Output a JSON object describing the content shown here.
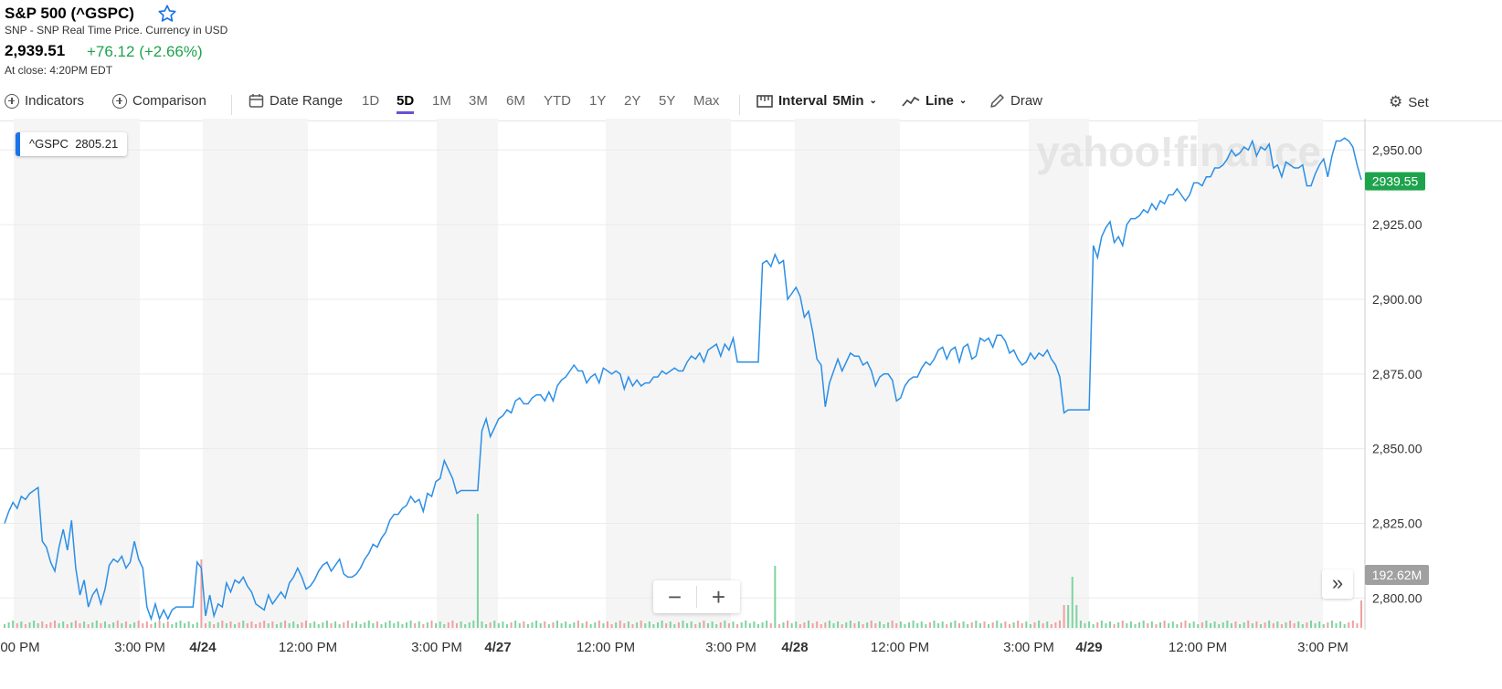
{
  "header": {
    "title": "S&P 500 (^GSPC)",
    "subtitle": "SNP - SNP Real Time Price. Currency in USD",
    "price": "2,939.51",
    "change": "+76.12 (+2.66%)",
    "close_time": "At close: 4:20PM EDT"
  },
  "toolbar": {
    "indicators": "Indicators",
    "comparison": "Comparison",
    "date_range": "Date Range",
    "ranges": [
      "1D",
      "5D",
      "1M",
      "3M",
      "6M",
      "YTD",
      "1Y",
      "2Y",
      "5Y",
      "Max"
    ],
    "active_range": "5D",
    "interval_label": "Interval",
    "interval_value": "5Min",
    "chart_type": "Line",
    "draw": "Draw",
    "settings": "Set"
  },
  "chip": {
    "symbol": "^GSPC",
    "value": "2805.21"
  },
  "watermark": "yahoo!finance",
  "colors": {
    "line": "#2b8fe6",
    "up": "#1ea34d",
    "down": "#e05050",
    "accent": "#6b4fd8",
    "vol_up": "#7fd39e",
    "vol_down": "#f0a0a0"
  },
  "chart_data": {
    "type": "line",
    "series": [
      {
        "values": [
          2825,
          2829,
          2832,
          2830,
          2834,
          2833,
          2835,
          2836,
          2837,
          2819,
          2817,
          2812,
          2809,
          2817,
          2823,
          2816,
          2826,
          2810,
          2801,
          2806,
          2797,
          2801,
          2803,
          2798,
          2803,
          2811,
          2813,
          2812,
          2814,
          2810,
          2812,
          2819,
          2813,
          2810,
          2797,
          2793,
          2798,
          2793,
          2796,
          2793,
          2796,
          2797,
          2797,
          2797,
          2797,
          2797,
          2812,
          2810,
          2794,
          2801,
          2794,
          2798,
          2797,
          2805,
          2802,
          2806,
          2805,
          2807,
          2804,
          2802,
          2798,
          2797,
          2796,
          2801,
          2798,
          2800,
          2802,
          2800,
          2805,
          2807,
          2810,
          2807,
          2803,
          2804,
          2806,
          2809,
          2811,
          2812,
          2809,
          2811,
          2813,
          2808,
          2807,
          2807,
          2808,
          2810,
          2813,
          2815,
          2818,
          2817,
          2820,
          2822,
          2826,
          2828,
          2828,
          2830,
          2831,
          2834,
          2832,
          2833,
          2829,
          2835,
          2834,
          2839,
          2840,
          2846,
          2843,
          2840,
          2835,
          2836,
          2836,
          2836,
          2836,
          2836,
          2856,
          2860,
          2854,
          2857,
          2860,
          2861,
          2863,
          2862,
          2866,
          2867,
          2865,
          2865,
          2867,
          2868,
          2868,
          2866,
          2869,
          2866,
          2871,
          2873,
          2874,
          2876,
          2878,
          2876,
          2876,
          2872,
          2874,
          2875,
          2872,
          2877,
          2876,
          2875,
          2876,
          2875,
          2870,
          2874,
          2871,
          2873,
          2871,
          2872,
          2872,
          2874,
          2874,
          2876,
          2875,
          2876,
          2877,
          2876,
          2876,
          2879,
          2881,
          2880,
          2882,
          2879,
          2883,
          2884,
          2885,
          2881,
          2885,
          2883,
          2887,
          2879,
          2879,
          2879,
          2879,
          2879,
          2879,
          2912,
          2913,
          2911,
          2915,
          2912,
          2913,
          2900,
          2902,
          2904,
          2901,
          2894,
          2896,
          2889,
          2880,
          2878,
          2864,
          2872,
          2876,
          2880,
          2876,
          2879,
          2882,
          2881,
          2881,
          2878,
          2879,
          2876,
          2871,
          2874,
          2875,
          2875,
          2873,
          2866,
          2867,
          2871,
          2873,
          2874,
          2874,
          2877,
          2879,
          2878,
          2880,
          2883,
          2884,
          2880,
          2883,
          2884,
          2879,
          2884,
          2885,
          2880,
          2881,
          2887,
          2886,
          2887,
          2884,
          2888,
          2888,
          2886,
          2882,
          2883,
          2880,
          2878,
          2879,
          2882,
          2880,
          2882,
          2881,
          2883,
          2880,
          2878,
          2874,
          2862,
          2863,
          2863,
          2863,
          2863,
          2863,
          2863,
          2918,
          2914,
          2921,
          2924,
          2926,
          2919,
          2921,
          2918,
          2925,
          2927,
          2927,
          2928,
          2930,
          2929,
          2932,
          2930,
          2933,
          2932,
          2935,
          2935,
          2937,
          2935,
          2933,
          2935,
          2939,
          2939,
          2938,
          2941,
          2941,
          2944,
          2944,
          2945,
          2947,
          2950,
          2948,
          2949,
          2951,
          2950,
          2953,
          2948,
          2951,
          2950,
          2952,
          2944,
          2945,
          2941,
          2946,
          2945,
          2944,
          2944,
          2945,
          2938,
          2938,
          2942,
          2945,
          2947,
          2941,
          2948,
          2953,
          2953,
          2954,
          2953,
          2951,
          2945,
          2940
        ]
      }
    ],
    "ylim": [
      2790,
      2955
    ],
    "y_ticks": [
      2800,
      2825,
      2850,
      2875,
      2900,
      2925,
      2950
    ],
    "y_tick_labels": [
      "2,800.00",
      "2,825.00",
      "2,850.00",
      "2,875.00",
      "2,900.00",
      "2,925.00",
      "2,950.00"
    ],
    "x_tick_labels": [
      "00 PM",
      "3:00 PM",
      "4/24",
      "12:00 PM",
      "3:00 PM",
      "4/27",
      "12:00 PM",
      "3:00 PM",
      "4/28",
      "12:00 PM",
      "3:00 PM",
      "4/29",
      "12:00 PM",
      "3:00 PM"
    ],
    "last_price_label": "2939.55",
    "last_volume_label": "192.62M",
    "grid": true
  }
}
